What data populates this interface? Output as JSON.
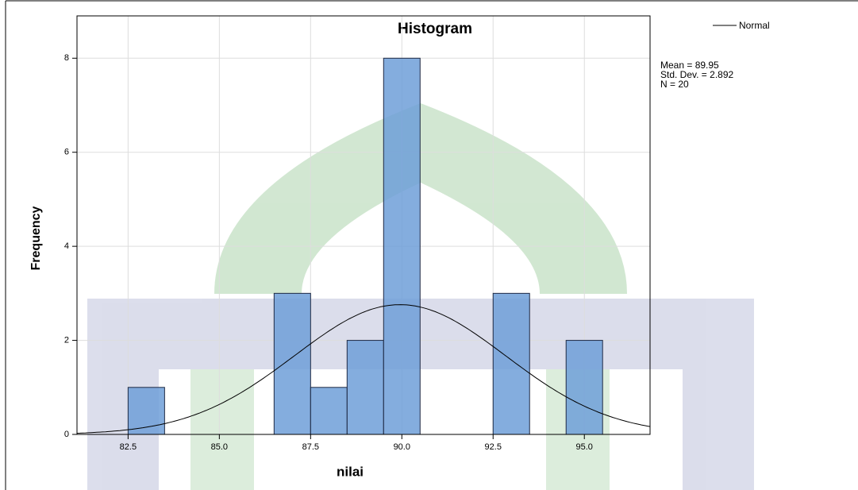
{
  "chart_data": {
    "type": "histogram",
    "title": "Histogram",
    "x_label": "nilai",
    "y_label": "Frequency",
    "bins": [
      82.5,
      83.5,
      84.5,
      85.5,
      86.5,
      87.5,
      88.5,
      89.5,
      90.5,
      91.5,
      92.5,
      93.5,
      94.5,
      95.5
    ],
    "counts": [
      1,
      0,
      0,
      0,
      3,
      1,
      2,
      8,
      0,
      0,
      3,
      0,
      2
    ],
    "color": "#6f9fd8",
    "edge_color": "#1f2a44",
    "xlim": [
      81.1,
      96.8
    ],
    "ylim": [
      0,
      8.9
    ],
    "xticks": [
      {
        "value": 82.5,
        "label": "82.5"
      },
      {
        "value": 85,
        "label": "85.0"
      },
      {
        "value": 87.5,
        "label": "87.5"
      },
      {
        "value": 90,
        "label": "90.0"
      },
      {
        "value": 92.5,
        "label": "92.5"
      },
      {
        "value": 95,
        "label": "95.0"
      }
    ],
    "yticks": [
      0,
      2,
      4,
      6,
      8
    ],
    "grid": true,
    "curve": {
      "name": "Normal",
      "color": "#000000"
    },
    "stats": [
      {
        "value": 89.95,
        "label": "Mean = 89.95"
      },
      {
        "value": 2.892,
        "label": "Std. Dev. = 2.892"
      },
      {
        "value": 20,
        "label": "N = 20"
      }
    ]
  }
}
